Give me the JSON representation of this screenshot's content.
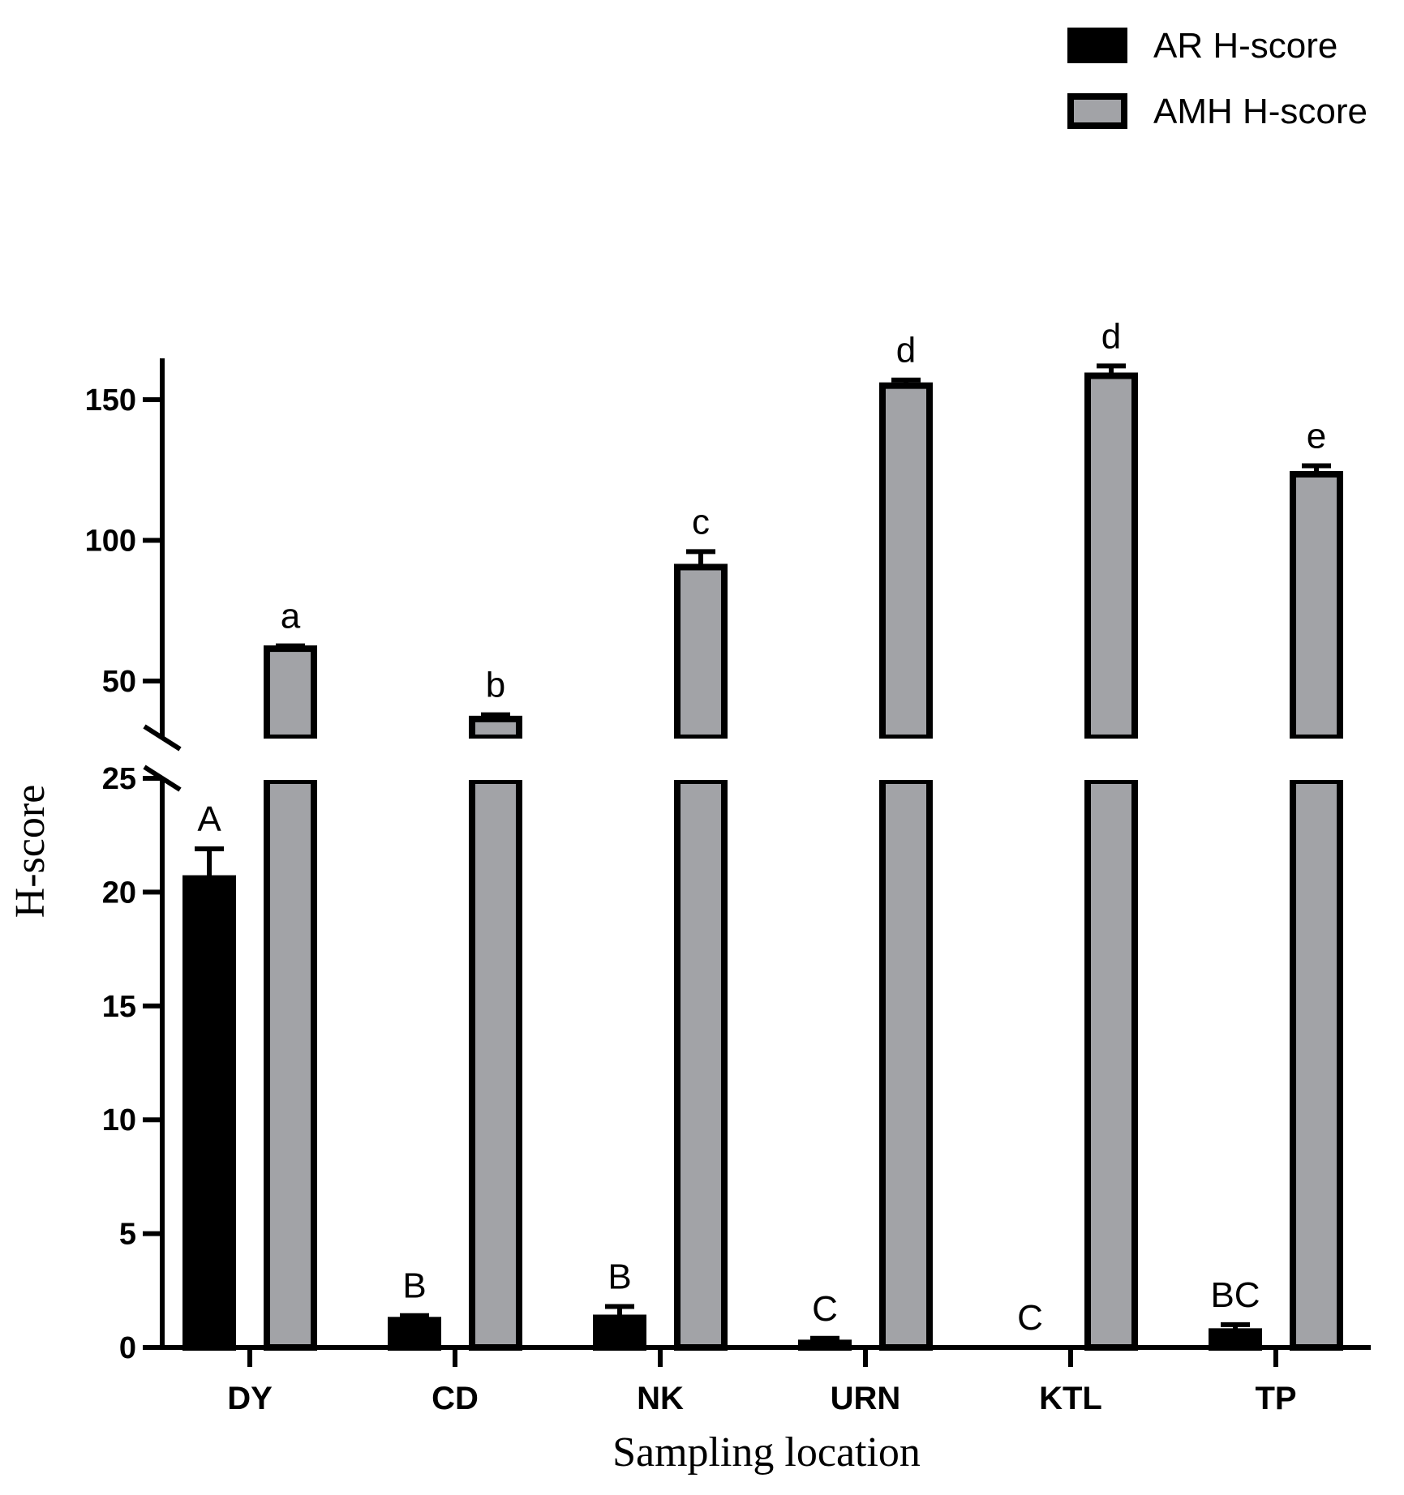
{
  "chart_data": {
    "type": "bar",
    "xlabel": "Sampling location",
    "ylabel": "H-score",
    "categories": [
      "DY",
      "CD",
      "NK",
      "URN",
      "KTL",
      "TP"
    ],
    "series": [
      {
        "name": "AR H-score",
        "color": "#000000",
        "values": [
          20.6,
          1.2,
          1.3,
          0.2,
          0.0,
          0.7
        ],
        "errors": [
          1.3,
          0.2,
          0.5,
          0.2,
          0.0,
          0.3
        ],
        "significance": [
          "A",
          "B",
          "B",
          "C",
          "C",
          "BC"
        ]
      },
      {
        "name": "AMH H-score",
        "color": "#a2a3a7",
        "values": [
          61.5,
          36.5,
          90.5,
          155.0,
          158.5,
          123.5
        ],
        "errors": [
          1.0,
          1.5,
          5.5,
          2.0,
          3.5,
          3.0
        ],
        "significance": [
          "a",
          "b",
          "c",
          "d",
          "d",
          "e"
        ]
      }
    ],
    "y_axis_broken": true,
    "y_lower_segment": {
      "range": [
        0,
        25
      ],
      "ticks": [
        0,
        5,
        10,
        15,
        20,
        25
      ]
    },
    "y_upper_segment": {
      "range": [
        35,
        165
      ],
      "ticks": [
        50,
        100,
        150
      ]
    },
    "grid": false,
    "legend_position": "top-right"
  }
}
